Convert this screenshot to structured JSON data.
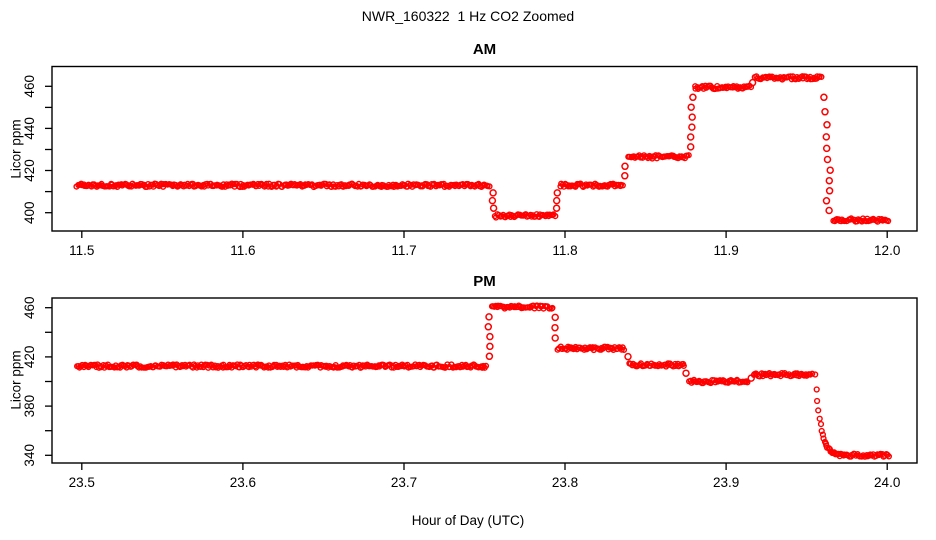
{
  "header": {
    "title": "NWR_160322  1 Hz CO2 Zoomed"
  },
  "colors": {
    "background": "#ffffff",
    "axis": "#000000",
    "points": "#ff0000"
  },
  "chart_data": [
    {
      "type": "scatter",
      "title": "AM",
      "xlabel": "",
      "ylabel": "Licor ppm",
      "marker": "open-circle",
      "point_color": "#ff0000",
      "xlim": [
        11.4815,
        12.0185
      ],
      "ylim": [
        391.3,
        469.4
      ],
      "x_tick_values": [
        11.5,
        11.6,
        11.7,
        11.8,
        11.9,
        12.0
      ],
      "x_tick_labels": [
        "11.5",
        "11.6",
        "11.7",
        "11.8",
        "11.9",
        "12.0"
      ],
      "y_tick_values": [
        400,
        420,
        440,
        460
      ],
      "y_tick_labels": [
        "400",
        "420",
        "440",
        "460"
      ],
      "y_tick_minor": [
        410,
        430,
        450
      ],
      "levels": [
        {
          "t0": 11.497,
          "t1": 11.7535,
          "v": 413.0
        },
        {
          "t0": 11.7565,
          "t1": 11.794,
          "v": 398.5
        },
        {
          "t0": 11.797,
          "t1": 11.836,
          "v": 413.0
        },
        {
          "t0": 11.8395,
          "t1": 11.877,
          "v": 426.5
        },
        {
          "t0": 11.8805,
          "t1": 11.9155,
          "v": 459.5
        },
        {
          "t0": 11.918,
          "t1": 11.9595,
          "v": 464.0
        },
        {
          "t0": 11.9665,
          "t1": 12.001,
          "v": 396.5
        }
      ],
      "transitions": [
        {
          "t": 11.755,
          "v0": 413.0,
          "v1": 398.5,
          "style": "sparse"
        },
        {
          "t": 11.7955,
          "v0": 398.5,
          "v1": 413.0,
          "style": "sparse"
        },
        {
          "t": 11.8378,
          "v0": 413.0,
          "v1": 426.5,
          "style": "sparse"
        },
        {
          "t": 11.8788,
          "v0": 426.5,
          "v1": 459.5,
          "style": "sparse"
        },
        {
          "t": 11.917,
          "v0": 459.5,
          "v1": 464.0,
          "style": "sparse"
        },
        {
          "t": 11.962,
          "v0": 464.0,
          "v1": 396.5,
          "style": "drop"
        }
      ]
    },
    {
      "type": "scatter",
      "title": "PM",
      "xlabel": "Hour of Day (UTC)",
      "ylabel": "Licor ppm",
      "marker": "open-circle",
      "point_color": "#ff0000",
      "xlim": [
        23.4815,
        24.0185
      ],
      "ylim": [
        333.7,
        467.9
      ],
      "x_tick_values": [
        23.5,
        23.6,
        23.7,
        23.8,
        23.9,
        24.0
      ],
      "x_tick_labels": [
        "23.5",
        "23.6",
        "23.7",
        "23.8",
        "23.9",
        "24.0"
      ],
      "y_tick_values": [
        340,
        380,
        420,
        460
      ],
      "y_tick_labels": [
        "340",
        "380",
        "420",
        "460"
      ],
      "y_tick_minor": [
        360,
        400,
        440
      ],
      "levels": [
        {
          "t0": 23.497,
          "t1": 23.7515,
          "v": 412.5
        },
        {
          "t0": 23.7545,
          "t1": 23.7925,
          "v": 460.5
        },
        {
          "t0": 23.7955,
          "t1": 23.837,
          "v": 427.0
        },
        {
          "t0": 23.84,
          "t1": 23.874,
          "v": 413.5
        },
        {
          "t0": 23.877,
          "t1": 23.914,
          "v": 400.0
        },
        {
          "t0": 23.917,
          "t1": 23.954,
          "v": 405.5
        },
        {
          "t0": 23.9695,
          "t1": 24.001,
          "v": 340.0
        }
      ],
      "transitions": [
        {
          "t": 23.753,
          "v0": 412.5,
          "v1": 460.5,
          "style": "sparse"
        },
        {
          "t": 23.794,
          "v0": 460.5,
          "v1": 427.0,
          "style": "sparse"
        },
        {
          "t": 23.8385,
          "v0": 427.0,
          "v1": 413.5,
          "style": "sparse"
        },
        {
          "t": 23.8755,
          "v0": 413.5,
          "v1": 400.0,
          "style": "sparse"
        },
        {
          "t": 23.9155,
          "v0": 400.0,
          "v1": 405.5,
          "style": "sparse"
        },
        {
          "t": 23.9555,
          "v0": 405.5,
          "v1": 340.0,
          "style": "curve"
        }
      ]
    }
  ]
}
